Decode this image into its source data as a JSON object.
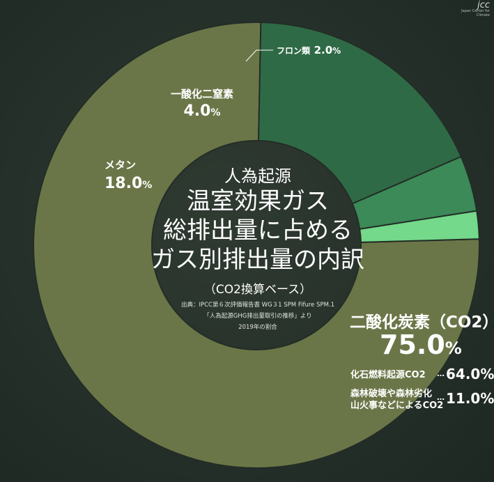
{
  "chart_data": {
    "type": "pie",
    "categories": [
      "二酸化炭素（CO2）",
      "メタン",
      "一酸化二窒素",
      "フロン類"
    ],
    "values": [
      75.0,
      18.0,
      4.0,
      2.0
    ],
    "colors": [
      "#6b7648",
      "#2f6a46",
      "#3b8a58",
      "#74d98a"
    ],
    "labels": {
      "co2": {
        "name": "二酸化炭素（CO2）",
        "value": "75.0",
        "unit": "%"
      },
      "methane": {
        "name": "メタン",
        "value": "18.0",
        "unit": "%"
      },
      "n2o": {
        "name": "一酸化二窒素",
        "value": "4.0",
        "unit": "%"
      },
      "freon": {
        "name": "フロン類",
        "value": "2.0",
        "unit": "%"
      }
    },
    "breakdown": [
      {
        "name": "化石燃料起源CO2",
        "dots": "…",
        "value": "64.0%"
      },
      {
        "name_line1": "森林破壊や森林劣化",
        "name_line2": "山火事などによるCO2",
        "dots": "…",
        "value": "11.0%"
      }
    ],
    "title_prefix": "人為起源",
    "title_lines": [
      "温室効果ガス",
      "総排出量に占める",
      "ガス別排出量の内訳"
    ],
    "basis": "（CO2換算ベース）",
    "source_lines": [
      "出典：IPCC第６次評価報告書 WG３1 SPM Fifure SPM.1",
      "「人為起源GHG排出量取引の推移」より",
      "2019年の割合"
    ]
  },
  "logo": {
    "text": "jcc",
    "tagline": "Japan Center for Climate"
  }
}
